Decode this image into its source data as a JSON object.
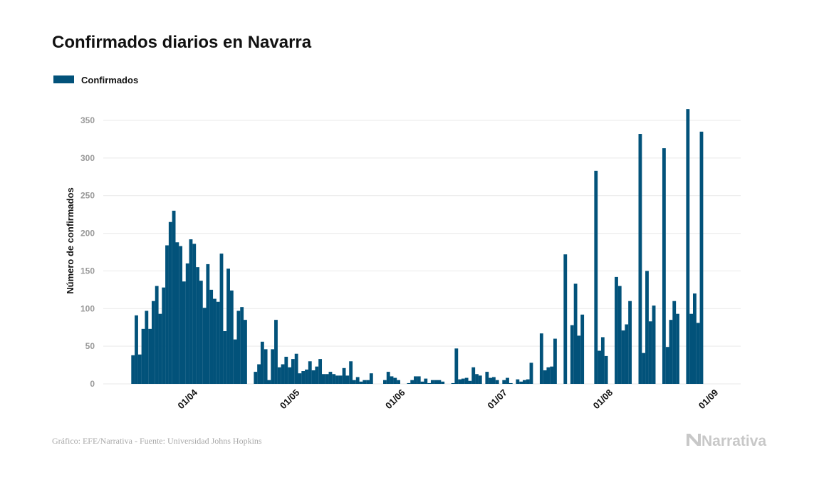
{
  "chart_data": {
    "type": "bar",
    "title": "Confirmados diarios en Navarra",
    "ylabel": "Número de confirmados",
    "xlabel": "",
    "ylim": [
      0,
      375
    ],
    "yticks": [
      0,
      50,
      100,
      150,
      200,
      250,
      300,
      350
    ],
    "xticks": [
      "01/04",
      "01/05",
      "01/06",
      "01/07",
      "01/08",
      "01/09"
    ],
    "grid": "horizontal",
    "legend_position": "top-left",
    "bar_color": "#02527a",
    "series": [
      {
        "name": "Confirmados",
        "x": [
          "15/03",
          "16/03",
          "17/03",
          "18/03",
          "19/03",
          "20/03",
          "21/03",
          "22/03",
          "23/03",
          "24/03",
          "25/03",
          "26/03",
          "27/03",
          "28/03",
          "29/03",
          "30/03",
          "31/03",
          "01/04",
          "02/04",
          "03/04",
          "04/04",
          "05/04",
          "06/04",
          "07/04",
          "08/04",
          "09/04",
          "10/04",
          "11/04",
          "12/04",
          "13/04",
          "14/04",
          "15/04",
          "16/04",
          "17/04",
          "18/04",
          "19/04",
          "20/04",
          "21/04",
          "22/04",
          "23/04",
          "24/04",
          "25/04",
          "26/04",
          "27/04",
          "28/04",
          "29/04",
          "30/04",
          "01/05",
          "02/05",
          "03/05",
          "04/05",
          "05/05",
          "06/05",
          "07/05",
          "08/05",
          "09/05",
          "10/05",
          "11/05",
          "12/05",
          "13/05",
          "14/05",
          "15/05",
          "16/05",
          "17/05",
          "18/05",
          "19/05",
          "20/05",
          "21/05",
          "22/05",
          "23/05",
          "24/05",
          "25/05",
          "26/05",
          "27/05",
          "28/05",
          "29/05",
          "30/05",
          "31/05",
          "01/06",
          "02/06",
          "03/06",
          "04/06",
          "05/06",
          "06/06",
          "07/06",
          "08/06",
          "09/06",
          "10/06",
          "11/06",
          "12/06",
          "13/06",
          "14/06",
          "15/06",
          "16/06",
          "17/06",
          "18/06",
          "19/06",
          "20/06",
          "21/06",
          "22/06",
          "23/06",
          "24/06",
          "25/06",
          "26/06",
          "27/06",
          "28/06",
          "29/06",
          "30/06",
          "01/07",
          "02/07",
          "03/07",
          "04/07",
          "05/07",
          "06/07",
          "07/07",
          "08/07",
          "09/07",
          "10/07",
          "11/07",
          "12/07",
          "13/07",
          "14/07",
          "15/07",
          "16/07",
          "17/07",
          "18/07",
          "19/07",
          "20/07",
          "21/07",
          "22/07",
          "23/07",
          "24/07",
          "25/07",
          "26/07",
          "27/07",
          "28/07",
          "29/07",
          "30/07",
          "31/07",
          "01/08",
          "02/08",
          "03/08",
          "04/08",
          "05/08",
          "06/08",
          "07/08",
          "08/08",
          "09/08",
          "10/08",
          "11/08",
          "12/08",
          "13/08",
          "14/08",
          "15/08",
          "16/08",
          "17/08",
          "18/08",
          "19/08",
          "20/08",
          "21/08",
          "22/08",
          "23/08",
          "24/08",
          "25/08",
          "26/08",
          "27/08",
          "28/08",
          "29/08",
          "30/08",
          "31/08"
        ],
        "values": [
          38,
          91,
          39,
          73,
          97,
          73,
          110,
          130,
          93,
          128,
          184,
          215,
          230,
          188,
          183,
          136,
          160,
          192,
          186,
          155,
          137,
          101,
          159,
          125,
          113,
          109,
          173,
          70,
          153,
          124,
          59,
          97,
          102,
          85,
          0,
          0,
          16,
          26,
          56,
          46,
          5,
          46,
          85,
          22,
          26,
          36,
          22,
          33,
          40,
          14,
          17,
          19,
          30,
          18,
          23,
          33,
          13,
          13,
          16,
          13,
          11,
          11,
          21,
          11,
          30,
          5,
          9,
          3,
          5,
          5,
          14,
          0,
          0,
          0,
          5,
          16,
          10,
          8,
          5,
          0,
          0,
          1,
          5,
          10,
          10,
          3,
          7,
          1,
          5,
          5,
          5,
          3,
          0,
          0,
          1,
          47,
          6,
          7,
          8,
          4,
          22,
          13,
          11,
          0,
          16,
          8,
          9,
          5,
          0,
          5,
          8,
          1,
          0,
          6,
          3,
          5,
          6,
          28,
          0,
          0,
          67,
          18,
          22,
          23,
          60,
          0,
          0,
          172,
          0,
          78,
          133,
          64,
          92,
          0,
          0,
          0,
          283,
          44,
          62,
          37,
          0,
          0,
          142,
          130,
          71,
          79,
          110,
          0,
          0,
          332,
          41,
          150,
          83,
          104,
          0,
          0,
          313,
          49,
          85,
          110,
          93,
          0,
          0,
          365,
          93,
          120,
          81,
          335,
          0,
          0
        ]
      }
    ]
  },
  "footer": {
    "source": "Gráfico: EFE/Narrativa - Fuente: Universidad Johns Hopkins",
    "logo": "Narrativa"
  }
}
